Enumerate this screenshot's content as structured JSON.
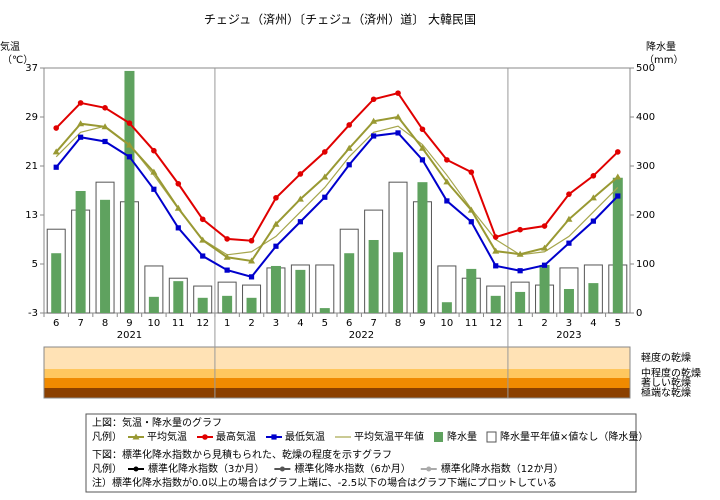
{
  "title": "チェジュ（済州）〔チェジュ（済州）道〕 大韓民国",
  "chart_data": [
    {
      "type": "combo",
      "ylabel": [
        "気温",
        "（℃）"
      ],
      "y2label": [
        "降水量",
        "（mm）"
      ],
      "categories": [
        "6",
        "7",
        "8",
        "9",
        "10",
        "11",
        "12",
        "1",
        "2",
        "3",
        "4",
        "5",
        "6",
        "7",
        "8",
        "9",
        "10",
        "11",
        "12",
        "1",
        "2",
        "3",
        "4",
        "5"
      ],
      "year_labels": [
        "2021",
        "2022",
        "2023"
      ],
      "ylim": [
        -3,
        37
      ],
      "yticks": [
        -3,
        5,
        13,
        21,
        29,
        37
      ],
      "y2lim": [
        0,
        500
      ],
      "y2ticks": [
        0,
        100,
        200,
        300,
        400,
        500
      ],
      "series": [
        {
          "name": "平均気温",
          "kind": "line",
          "marker": "triangle",
          "color": "#999933",
          "axis": "y",
          "values": [
            23.3,
            27.9,
            27.4,
            24.4,
            20.0,
            14.1,
            8.9,
            6.1,
            5.5,
            11.5,
            15.6,
            19.2,
            23.9,
            28.3,
            29.0,
            23.9,
            18.4,
            13.8,
            7.1,
            6.6,
            7.6,
            12.3,
            15.8,
            19.2
          ]
        },
        {
          "name": "最高気温",
          "kind": "line",
          "marker": "circle",
          "color": "#e00000",
          "axis": "y",
          "values": [
            27.2,
            31.3,
            30.5,
            28.0,
            23.5,
            18.1,
            12.3,
            9.1,
            8.8,
            15.8,
            19.7,
            23.3,
            27.7,
            31.9,
            32.9,
            27.0,
            22.0,
            20.0,
            9.4,
            10.6,
            11.2,
            16.4,
            19.4,
            23.3
          ]
        },
        {
          "name": "最低気温",
          "kind": "line",
          "marker": "square",
          "color": "#0000cc",
          "axis": "y",
          "values": [
            20.8,
            25.7,
            25.0,
            22.5,
            17.2,
            10.9,
            6.3,
            4.0,
            2.9,
            7.9,
            11.9,
            15.9,
            21.2,
            25.9,
            26.4,
            22.0,
            15.3,
            11.9,
            4.7,
            3.9,
            4.8,
            8.4,
            12.0,
            16.1
          ]
        },
        {
          "name": "平均気温平年値",
          "kind": "line",
          "marker": null,
          "color": "#a6a64d",
          "axis": "y",
          "values": [
            22.5,
            26.5,
            27.5,
            24.5,
            19.5,
            14.0,
            9.0,
            6.5,
            7.0,
            9.5,
            13.5,
            17.5,
            22.5,
            26.5,
            27.5,
            24.5,
            19.5,
            14.0,
            9.0,
            6.5,
            7.0,
            9.5,
            13.5,
            17.5
          ]
        },
        {
          "name": "降水量",
          "kind": "bar",
          "color": "#5fa25f",
          "axis": "y2",
          "values": [
            122,
            249,
            231,
            494,
            33,
            65,
            31,
            35,
            31,
            96,
            88,
            10,
            122,
            149,
            124,
            267,
            22,
            90,
            35,
            43,
            98,
            49,
            61,
            276
          ]
        },
        {
          "name": "降水量平年値",
          "kind": "bar",
          "color": "#ffffff",
          "axis": "y2",
          "values": [
            171,
            210,
            267,
            227,
            96,
            71,
            55,
            63,
            57,
            92,
            98,
            98,
            171,
            210,
            267,
            227,
            96,
            71,
            55,
            63,
            57,
            92,
            98,
            98
          ]
        }
      ]
    },
    {
      "type": "band",
      "levels": [
        {
          "name": "軽度の乾燥",
          "color": "#ffe2b5"
        },
        {
          "name": "中程度の乾燥",
          "color": "#ffc75e"
        },
        {
          "name": "著しい乾燥",
          "color": "#f08a00"
        },
        {
          "name": "極端な乾燥",
          "color": "#8b4000"
        }
      ]
    }
  ],
  "legend_box": {
    "upper_caption": "上図：気温・降水量のグラフ",
    "legend_prefix": "凡例）",
    "missing_note": "×値なし（降水量）",
    "lower_caption": "下図：標準化降水指数から見積もられた、乾燥の程度を示すグラフ",
    "lower_prefix": "凡例）",
    "spi": [
      {
        "name": "標準化降水指数（3か月）",
        "color": "#000000"
      },
      {
        "name": "標準化降水指数（6か月）",
        "color": "#555555"
      },
      {
        "name": "標準化降水指数（12か月）",
        "color": "#aaaaaa"
      }
    ],
    "note": "注）標準化降水指数が0.0以上の場合はグラフ上端に、-2.5以下の場合はグラフ下端にプロットしている"
  }
}
